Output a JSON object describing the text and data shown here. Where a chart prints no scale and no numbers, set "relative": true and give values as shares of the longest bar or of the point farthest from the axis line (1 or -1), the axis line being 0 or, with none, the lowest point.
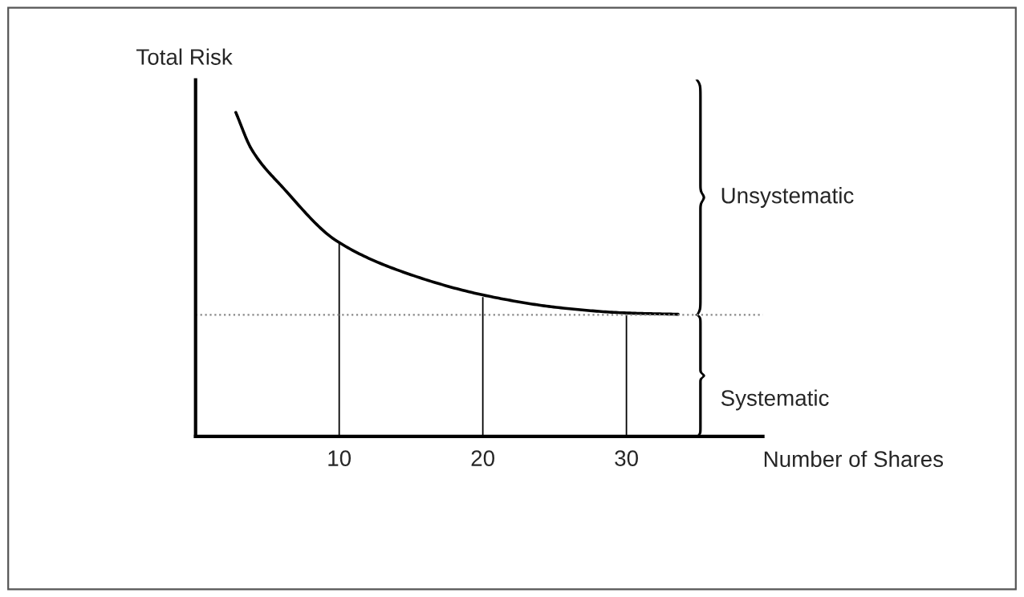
{
  "chart_data": {
    "type": "line",
    "relative": true,
    "xlabel": "Number of Shares",
    "ylabel": "Total Risk",
    "xlim": [
      0,
      39.5
    ],
    "xticks": [
      10,
      20,
      30
    ],
    "grid": false,
    "marker": "none",
    "line_style": "solid",
    "tick_labels": "x",
    "series": [
      {
        "color": "#000000",
        "x": [
          2.8,
          3.9,
          6.1,
          9.8,
          14.6,
          20.6,
          25.6,
          30,
          33.6
        ],
        "values": [
          1.0,
          0.886,
          0.767,
          0.604,
          0.505,
          0.431,
          0.396,
          0.381,
          0.377
        ]
      },
      {
        "type": "bar",
        "color": "#000000",
        "x": [
          10,
          20,
          30
        ],
        "values": [
          0.6,
          0.43,
          0.38
        ]
      }
    ],
    "ref_lines": [
      {
        "axis": "y",
        "value": 0.375,
        "color": "#888888",
        "line_style": "dotted"
      }
    ],
    "annotations": [
      "Unsystematic",
      "Systematic"
    ]
  }
}
